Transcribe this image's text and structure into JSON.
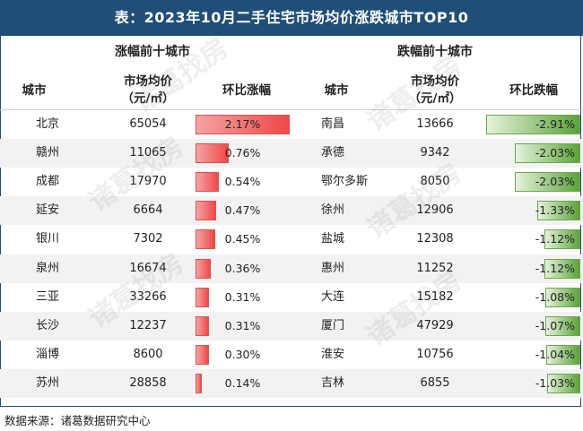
{
  "title": "表：2023年10月二手住宅市场均价涨跌城市TOP10",
  "left": {
    "section_title": "涨幅前十城市",
    "col_city": "城市",
    "col_price_line1": "市场均价",
    "col_price_line2": "（元/㎡）",
    "col_change": "环比涨幅",
    "rows": [
      {
        "city": "北京",
        "price": "65054",
        "change": "2.17%",
        "value": 2.17
      },
      {
        "city": "赣州",
        "price": "11065",
        "change": "0.76%",
        "value": 0.76
      },
      {
        "city": "成都",
        "price": "17970",
        "change": "0.54%",
        "value": 0.54
      },
      {
        "city": "延安",
        "price": "6664",
        "change": "0.47%",
        "value": 0.47
      },
      {
        "city": "银川",
        "price": "7302",
        "change": "0.45%",
        "value": 0.45
      },
      {
        "city": "泉州",
        "price": "16674",
        "change": "0.36%",
        "value": 0.36
      },
      {
        "city": "三亚",
        "price": "33266",
        "change": "0.31%",
        "value": 0.31
      },
      {
        "city": "长沙",
        "price": "12237",
        "change": "0.31%",
        "value": 0.31
      },
      {
        "city": "淄博",
        "price": "8600",
        "change": "0.30%",
        "value": 0.3
      },
      {
        "city": "苏州",
        "price": "28858",
        "change": "0.14%",
        "value": 0.14
      }
    ]
  },
  "right": {
    "section_title": "跌幅前十城市",
    "col_city": "城市",
    "col_price_line1": "市场均价",
    "col_price_line2": "（元/㎡）",
    "col_change": "环比跌幅",
    "rows": [
      {
        "city": "南昌",
        "price": "13666",
        "change": "-2.91%",
        "value": -2.91
      },
      {
        "city": "承德",
        "price": "9342",
        "change": "-2.03%",
        "value": -2.03
      },
      {
        "city": "鄂尔多斯",
        "price": "8050",
        "change": "-2.03%",
        "value": -2.03
      },
      {
        "city": "徐州",
        "price": "12906",
        "change": "-1.33%",
        "value": -1.33
      },
      {
        "city": "盐城",
        "price": "12308",
        "change": "-1.12%",
        "value": -1.12
      },
      {
        "city": "惠州",
        "price": "11252",
        "change": "-1.12%",
        "value": -1.12
      },
      {
        "city": "大连",
        "price": "15182",
        "change": "-1.08%",
        "value": -1.08
      },
      {
        "city": "厦门",
        "price": "47929",
        "change": "-1.07%",
        "value": -1.07
      },
      {
        "city": "淮安",
        "price": "10756",
        "change": "-1.04%",
        "value": -1.04
      },
      {
        "city": "吉林",
        "price": "6855",
        "change": "-1.03%",
        "value": -1.03
      }
    ]
  },
  "watermark": "诸葛找房",
  "footer": "数据来源：诸葛数据研究中心",
  "colors": {
    "header": "#1f4e79",
    "up": "#f04848",
    "down": "#5aa338"
  },
  "chart_data": {
    "type": "table",
    "title": "表：2023年10月二手住宅市场均价涨跌城市TOP10",
    "tables": [
      {
        "name": "涨幅前十城市",
        "columns": [
          "城市",
          "市场均价（元/㎡）",
          "环比涨幅"
        ],
        "categories": [
          "北京",
          "赣州",
          "成都",
          "延安",
          "银川",
          "泉州",
          "三亚",
          "长沙",
          "淄博",
          "苏州"
        ],
        "series": [
          {
            "name": "市场均价（元/㎡）",
            "values": [
              65054,
              11065,
              17970,
              6664,
              7302,
              16674,
              33266,
              12237,
              8600,
              28858
            ]
          },
          {
            "name": "环比涨幅(%)",
            "values": [
              2.17,
              0.76,
              0.54,
              0.47,
              0.45,
              0.36,
              0.31,
              0.31,
              0.3,
              0.14
            ]
          }
        ]
      },
      {
        "name": "跌幅前十城市",
        "columns": [
          "城市",
          "市场均价（元/㎡）",
          "环比跌幅"
        ],
        "categories": [
          "南昌",
          "承德",
          "鄂尔多斯",
          "徐州",
          "盐城",
          "惠州",
          "大连",
          "厦门",
          "淮安",
          "吉林"
        ],
        "series": [
          {
            "name": "市场均价（元/㎡）",
            "values": [
              13666,
              9342,
              8050,
              12906,
              12308,
              11252,
              15182,
              47929,
              10756,
              6855
            ]
          },
          {
            "name": "环比跌幅(%)",
            "values": [
              -2.91,
              -2.03,
              -2.03,
              -1.33,
              -1.12,
              -1.12,
              -1.08,
              -1.07,
              -1.04,
              -1.03
            ]
          }
        ]
      }
    ]
  }
}
